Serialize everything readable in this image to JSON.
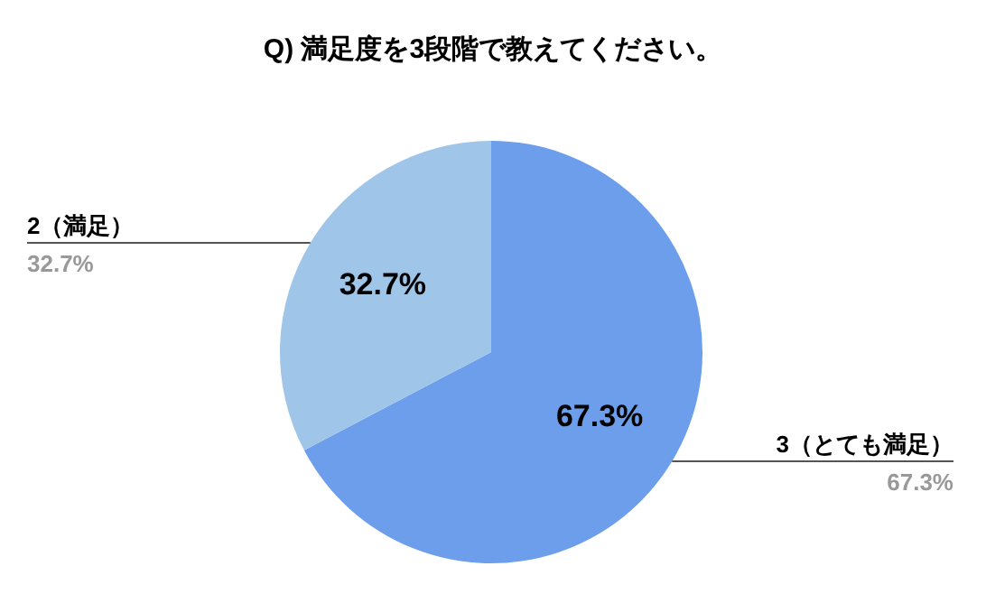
{
  "chart_data": {
    "type": "pie",
    "title": "Q) 満足度を3段階で教えてください。",
    "categories": [
      "3（とても満足）",
      "2（満足）"
    ],
    "values": [
      67.3,
      32.7
    ],
    "colors": [
      "#6d9eeb",
      "#9fc5e8"
    ],
    "value_labels": [
      "67.3%",
      "32.7%"
    ]
  }
}
